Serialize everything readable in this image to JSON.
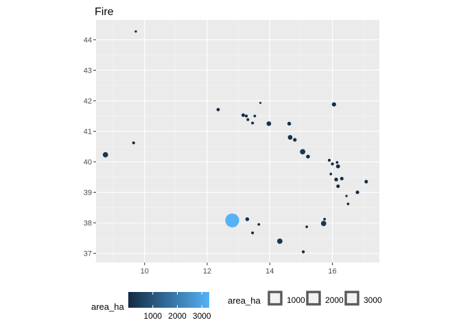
{
  "chart_data": {
    "type": "scatter",
    "title": "Fire",
    "xlabel": "",
    "ylabel": "",
    "xlim": [
      8.45,
      17.5
    ],
    "ylim": [
      36.7,
      44.65
    ],
    "xticks": [
      10,
      12,
      14,
      16
    ],
    "yticks": [
      37,
      38,
      39,
      40,
      41,
      42,
      43,
      44
    ],
    "grid": true,
    "fill_scale": {
      "name": "area_ha",
      "low": "#132B43",
      "high": "#56B1F7",
      "range": [
        0,
        3300
      ],
      "breaks": [
        1000,
        2000,
        3000
      ]
    },
    "size_legend": {
      "name": "area_ha",
      "breaks": [
        1000,
        2000,
        3000
      ]
    },
    "points": [
      {
        "x": 9.72,
        "y": 44.27,
        "area_ha": 10
      },
      {
        "x": 8.75,
        "y": 40.23,
        "area_ha": 300
      },
      {
        "x": 9.65,
        "y": 40.62,
        "area_ha": 30
      },
      {
        "x": 12.35,
        "y": 41.71,
        "area_ha": 60
      },
      {
        "x": 13.7,
        "y": 41.93,
        "area_ha": 5
      },
      {
        "x": 13.15,
        "y": 41.53,
        "area_ha": 80
      },
      {
        "x": 13.25,
        "y": 41.5,
        "area_ha": 40
      },
      {
        "x": 13.3,
        "y": 41.38,
        "area_ha": 30
      },
      {
        "x": 13.45,
        "y": 41.27,
        "area_ha": 30
      },
      {
        "x": 13.52,
        "y": 41.5,
        "area_ha": 20
      },
      {
        "x": 13.97,
        "y": 41.25,
        "area_ha": 200
      },
      {
        "x": 14.62,
        "y": 41.25,
        "area_ha": 100
      },
      {
        "x": 16.05,
        "y": 41.88,
        "area_ha": 150
      },
      {
        "x": 14.65,
        "y": 40.8,
        "area_ha": 200
      },
      {
        "x": 14.8,
        "y": 40.72,
        "area_ha": 80
      },
      {
        "x": 15.05,
        "y": 40.33,
        "area_ha": 300
      },
      {
        "x": 15.22,
        "y": 40.17,
        "area_ha": 100
      },
      {
        "x": 15.9,
        "y": 40.05,
        "area_ha": 30
      },
      {
        "x": 16.0,
        "y": 39.93,
        "area_ha": 40
      },
      {
        "x": 16.15,
        "y": 39.98,
        "area_ha": 20
      },
      {
        "x": 16.18,
        "y": 39.85,
        "area_ha": 120
      },
      {
        "x": 15.95,
        "y": 39.6,
        "area_ha": 20
      },
      {
        "x": 16.12,
        "y": 39.42,
        "area_ha": 100
      },
      {
        "x": 16.3,
        "y": 39.45,
        "area_ha": 80
      },
      {
        "x": 16.18,
        "y": 39.2,
        "area_ha": 80
      },
      {
        "x": 16.45,
        "y": 38.88,
        "area_ha": 10
      },
      {
        "x": 16.5,
        "y": 38.62,
        "area_ha": 20
      },
      {
        "x": 16.8,
        "y": 39.0,
        "area_ha": 80
      },
      {
        "x": 17.08,
        "y": 39.35,
        "area_ha": 80
      },
      {
        "x": 15.72,
        "y": 37.98,
        "area_ha": 300
      },
      {
        "x": 15.75,
        "y": 38.12,
        "area_ha": 20
      },
      {
        "x": 15.18,
        "y": 37.87,
        "area_ha": 20
      },
      {
        "x": 13.28,
        "y": 38.12,
        "area_ha": 100
      },
      {
        "x": 13.65,
        "y": 37.95,
        "area_ha": 20
      },
      {
        "x": 13.45,
        "y": 37.67,
        "area_ha": 30
      },
      {
        "x": 14.32,
        "y": 37.4,
        "area_ha": 300
      },
      {
        "x": 15.07,
        "y": 37.05,
        "area_ha": 40
      },
      {
        "x": 12.8,
        "y": 38.08,
        "area_ha": 3300
      }
    ]
  }
}
